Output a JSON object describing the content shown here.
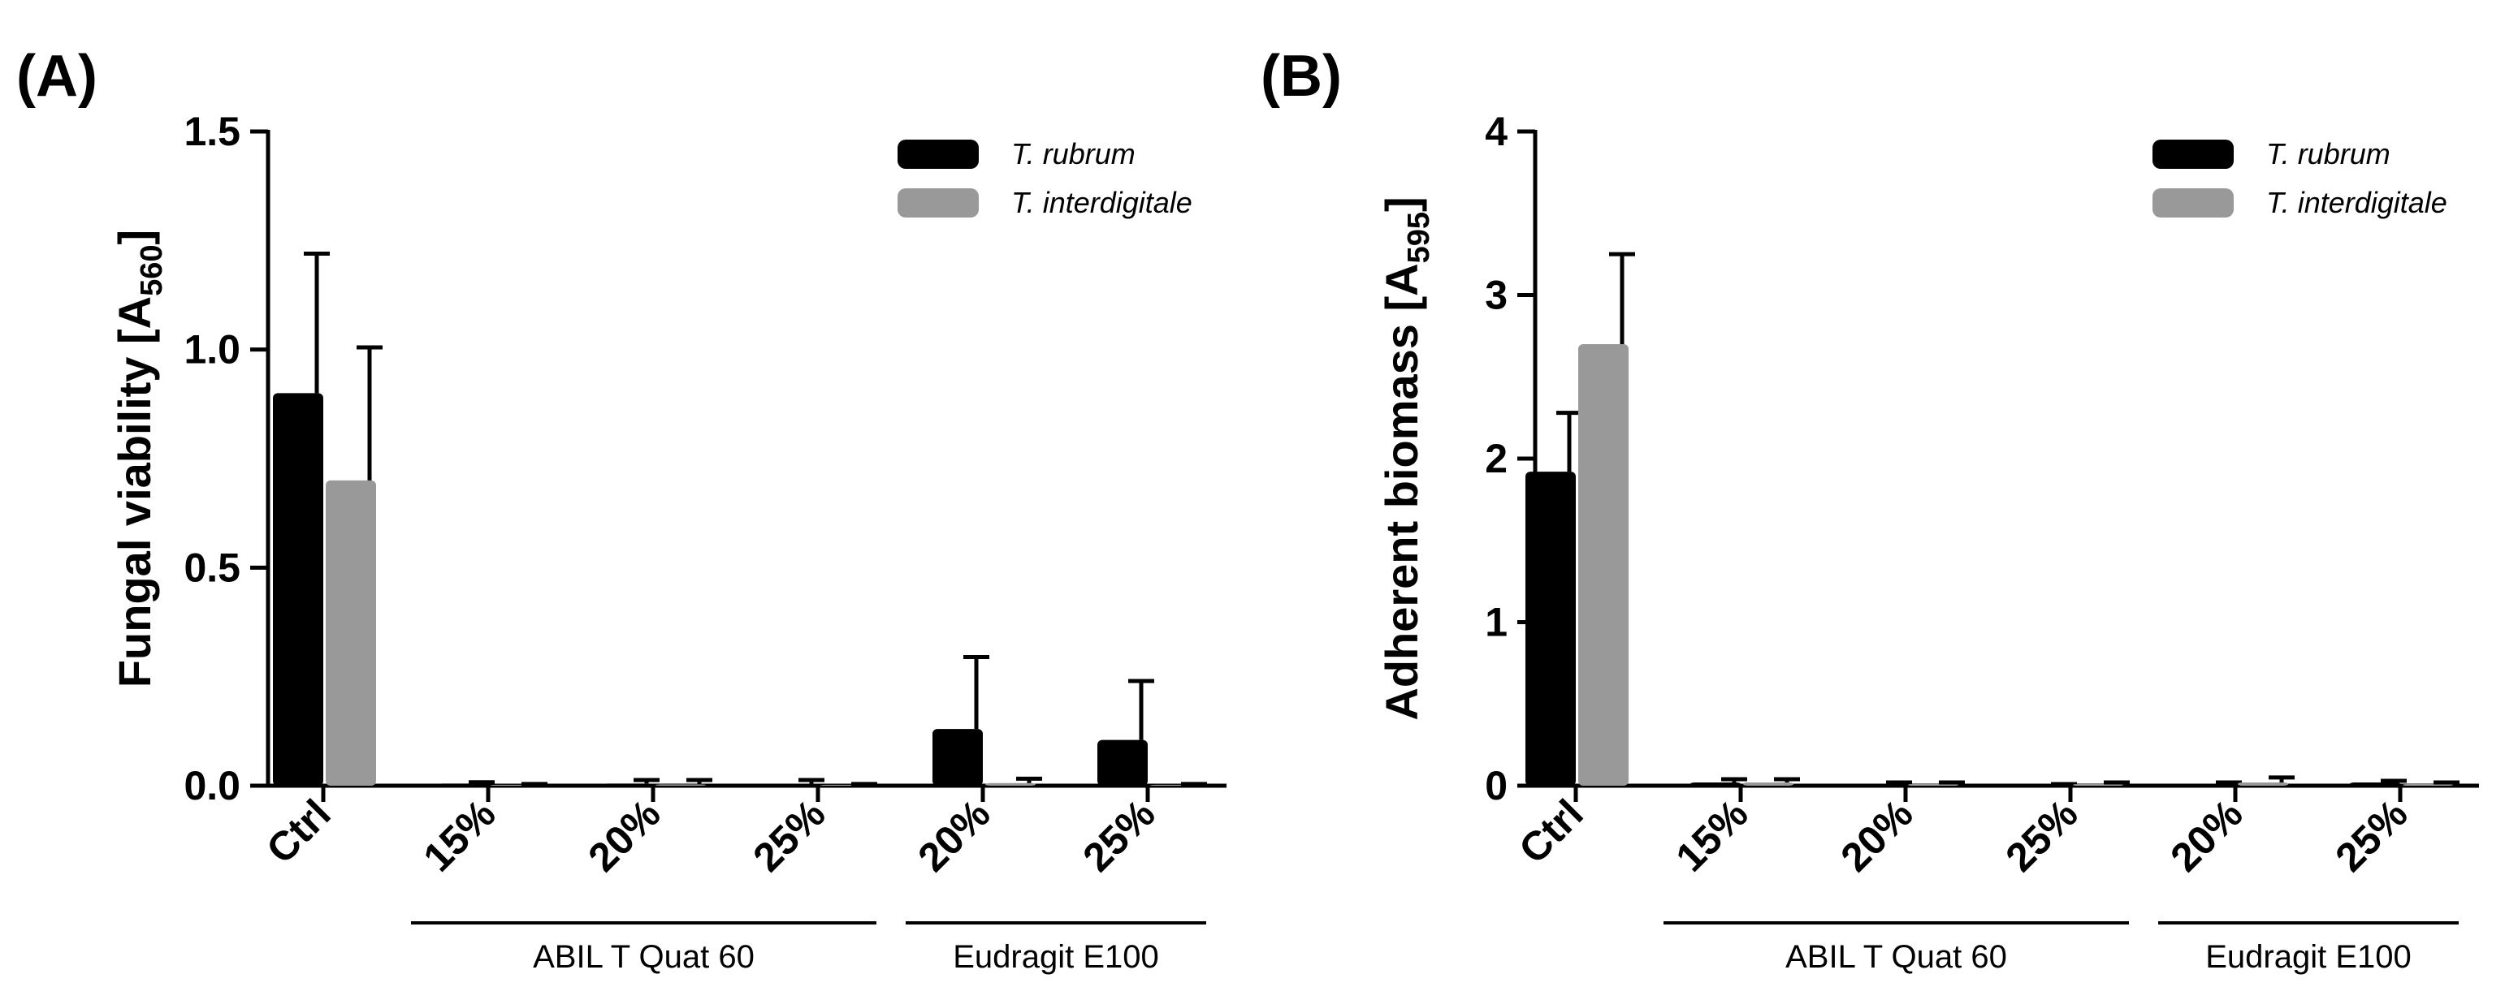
{
  "chart_data": [
    {
      "panel": "(A)",
      "type": "bar",
      "ylabel_main": "Fungal viability [A",
      "ylabel_sub": "560",
      "ylabel_close": "]",
      "ylim": [
        0,
        1.5
      ],
      "yticks": [
        0.0,
        0.5,
        1.0,
        1.5
      ],
      "ytick_labels": [
        "0.0",
        "0.5",
        "1.0",
        "1.5"
      ],
      "categories": [
        "Ctrl",
        "15%",
        "20%",
        "25%",
        "20%",
        "25%"
      ],
      "groups": [
        {
          "label": "ABIL T Quat 60",
          "start": 1,
          "end": 3
        },
        {
          "label": "Eudragit E100",
          "start": 4,
          "end": 5
        }
      ],
      "series": [
        {
          "name": "T. rubrum",
          "color": "#000000",
          "values": [
            0.9,
            0.005,
            0.005,
            0.003,
            0.13,
            0.105
          ],
          "errors": [
            0.32,
            0.003,
            0.008,
            0.01,
            0.165,
            0.135
          ]
        },
        {
          "name": "T. interdigitale",
          "color": "#999999",
          "values": [
            0.7,
            0.002,
            0.003,
            0.002,
            0.006,
            0.002
          ],
          "errors": [
            0.305,
            0.002,
            0.01,
            0.002,
            0.01,
            0.002
          ]
        }
      ]
    },
    {
      "panel": "(B)",
      "type": "bar",
      "ylabel_main": "Adherent biomass [A",
      "ylabel_sub": "595",
      "ylabel_close": "]",
      "ylim": [
        0,
        4
      ],
      "yticks": [
        0,
        1,
        2,
        3,
        4
      ],
      "ytick_labels": [
        "0",
        "1",
        "2",
        "3",
        "4"
      ],
      "categories": [
        "Ctrl",
        "15%",
        "20%",
        "25%",
        "20%",
        "25%"
      ],
      "groups": [
        {
          "label": "ABIL T Quat 60",
          "start": 1,
          "end": 3
        },
        {
          "label": "Eudragit E100",
          "start": 4,
          "end": 5
        }
      ],
      "series": [
        {
          "name": "T. rubrum",
          "color": "#000000",
          "values": [
            1.92,
            0.02,
            0.01,
            0.005,
            0.01,
            0.02
          ],
          "errors": [
            0.36,
            0.02,
            0.01,
            0.005,
            0.01,
            0.01
          ]
        },
        {
          "name": "T. interdigitale",
          "color": "#999999",
          "values": [
            2.7,
            0.02,
            0.01,
            0.01,
            0.02,
            0.01
          ],
          "errors": [
            0.55,
            0.02,
            0.01,
            0.01,
            0.03,
            0.01
          ]
        }
      ]
    }
  ]
}
